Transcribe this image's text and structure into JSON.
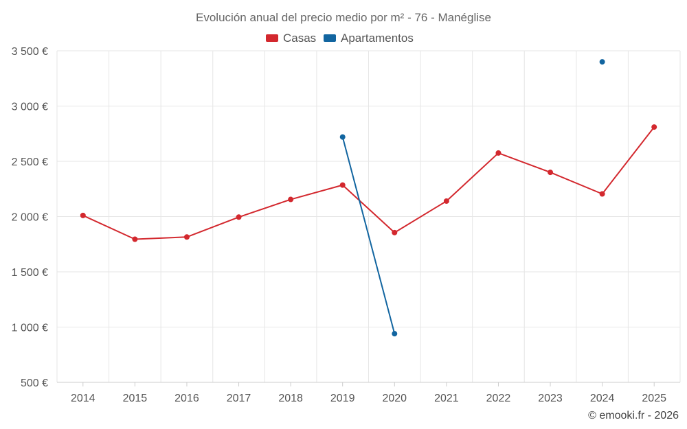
{
  "chart_data": {
    "type": "line",
    "title": "Evolución anual del precio medio por m² - 76 - Manéglise",
    "xlabel": "",
    "ylabel": "",
    "categories": [
      "2014",
      "2015",
      "2016",
      "2017",
      "2018",
      "2019",
      "2020",
      "2021",
      "2022",
      "2023",
      "2024",
      "2025"
    ],
    "ylim": [
      500,
      3500
    ],
    "yticks": [
      500,
      1000,
      1500,
      2000,
      2500,
      3000,
      3500
    ],
    "ytick_labels": [
      "500 €",
      "1 000 €",
      "1 500 €",
      "2 000 €",
      "2 500 €",
      "3 000 €",
      "3 500 €"
    ],
    "legend_position": "top-center",
    "grid": true,
    "series": [
      {
        "name": "Casas",
        "color": "#d3282e",
        "values": [
          2010,
          1795,
          1815,
          1995,
          2155,
          2285,
          1855,
          2140,
          2575,
          2400,
          2205,
          2810
        ]
      },
      {
        "name": "Apartamentos",
        "color": "#1265a0",
        "values": [
          null,
          null,
          null,
          null,
          null,
          2720,
          940,
          null,
          null,
          null,
          3400,
          null
        ]
      }
    ]
  },
  "credit": "© emooki.fr - 2026"
}
